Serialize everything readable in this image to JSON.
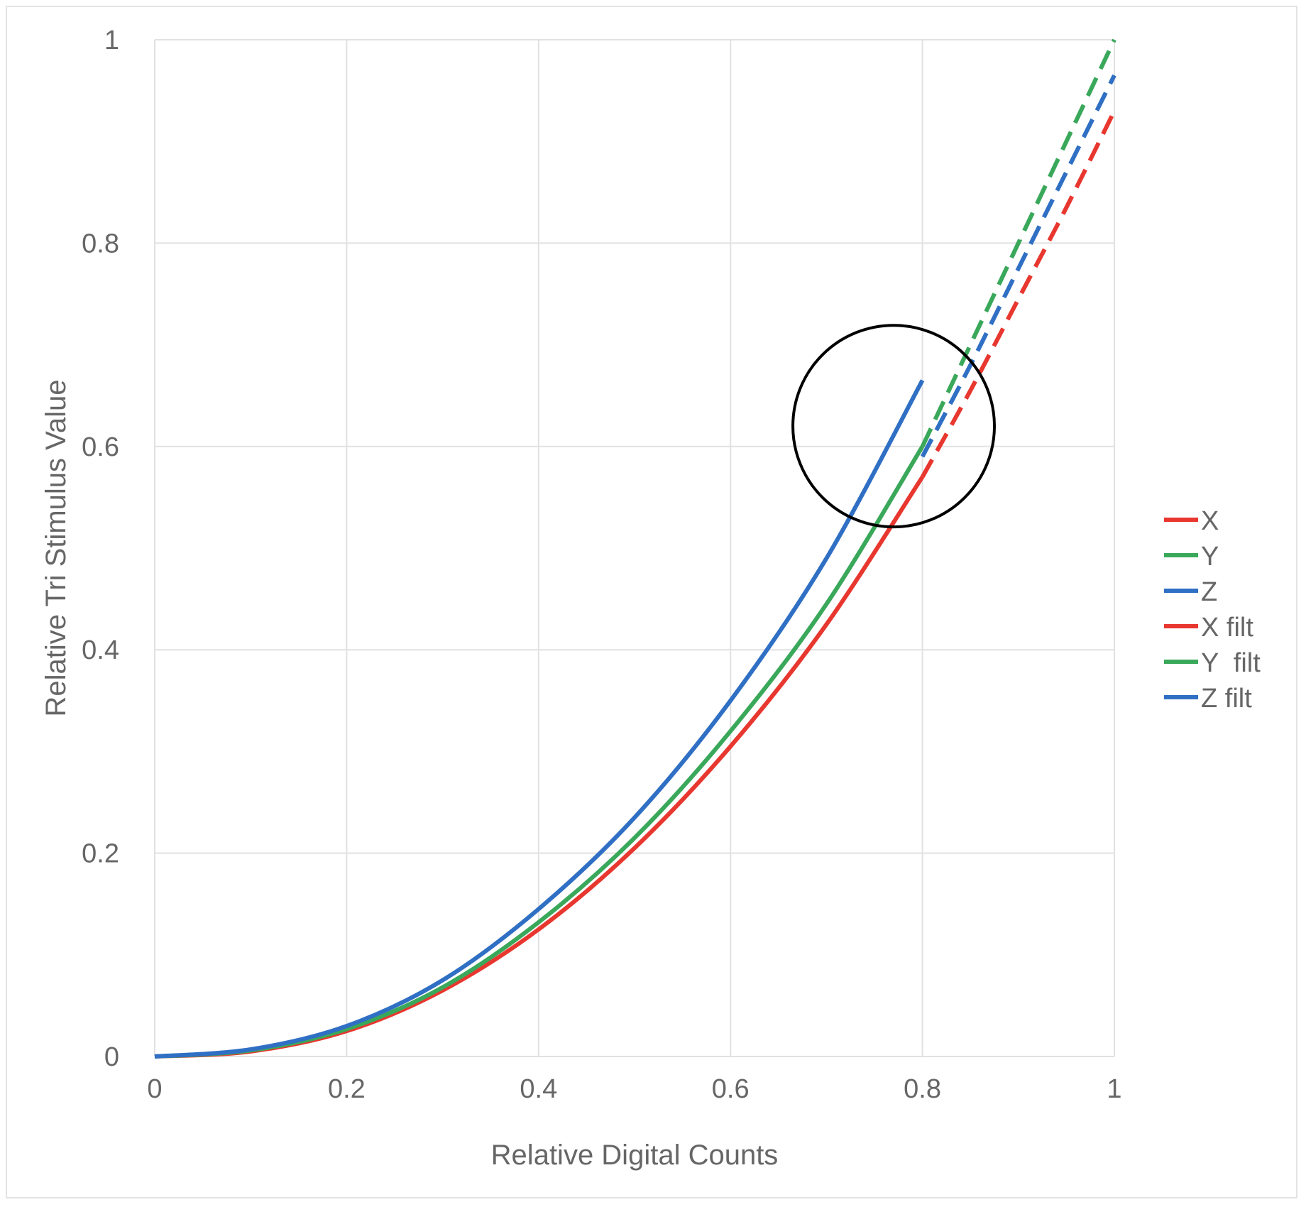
{
  "chart_data": {
    "type": "line",
    "title": "",
    "xlabel": "Relative Digital Counts",
    "ylabel": "Relative Tri Stimulus Value",
    "xlim": [
      0,
      1
    ],
    "ylim": [
      0,
      1
    ],
    "x_ticks": [
      {
        "value": 0,
        "label": "0"
      },
      {
        "value": 0.2,
        "label": "0.2"
      },
      {
        "value": 0.4,
        "label": "0.4"
      },
      {
        "value": 0.6,
        "label": "0.6"
      },
      {
        "value": 0.8,
        "label": "0.8"
      },
      {
        "value": 1,
        "label": "1"
      }
    ],
    "y_ticks": [
      {
        "value": 0,
        "label": "0"
      },
      {
        "value": 0.2,
        "label": "0.2"
      },
      {
        "value": 0.4,
        "label": "0.4"
      },
      {
        "value": 0.6,
        "label": "0.6"
      },
      {
        "value": 0.8,
        "label": "0.8"
      },
      {
        "value": 1,
        "label": "1"
      }
    ],
    "grid": true,
    "legend_position": "right",
    "series": [
      {
        "name": "X",
        "color": "#e8372f",
        "dash": "solid",
        "x": [
          0,
          0.1,
          0.2,
          0.3,
          0.4,
          0.5,
          0.6,
          0.7,
          0.8
        ],
        "y": [
          0,
          0.005,
          0.025,
          0.065,
          0.125,
          0.205,
          0.305,
          0.425,
          0.57
        ]
      },
      {
        "name": "Y",
        "color": "#3aa85a",
        "dash": "solid",
        "x": [
          0,
          0.1,
          0.2,
          0.3,
          0.4,
          0.5,
          0.6,
          0.7,
          0.8
        ],
        "y": [
          0,
          0.006,
          0.027,
          0.068,
          0.132,
          0.215,
          0.32,
          0.445,
          0.6
        ]
      },
      {
        "name": "Z",
        "color": "#2f6fc4",
        "dash": "solid",
        "x": [
          0,
          0.1,
          0.2,
          0.3,
          0.4,
          0.5,
          0.6,
          0.7,
          0.8
        ],
        "y": [
          0,
          0.007,
          0.03,
          0.075,
          0.145,
          0.235,
          0.35,
          0.49,
          0.665
        ]
      },
      {
        "name": "X filt",
        "color": "#e8372f",
        "dash": "dashed",
        "x": [
          0.8,
          0.85,
          0.9,
          0.95,
          1.0
        ],
        "y": [
          0.57,
          0.655,
          0.745,
          0.835,
          0.93
        ]
      },
      {
        "name": "Y  filt",
        "color": "#3aa85a",
        "dash": "dashed",
        "x": [
          0.8,
          0.85,
          0.9,
          0.95,
          1.0
        ],
        "y": [
          0.6,
          0.7,
          0.8,
          0.9,
          1.0
        ]
      },
      {
        "name": "Z filt",
        "color": "#2f6fc4",
        "dash": "dashed",
        "x": [
          0.8,
          0.85,
          0.9,
          0.95,
          1.0
        ],
        "y": [
          0.59,
          0.68,
          0.775,
          0.87,
          0.965
        ]
      }
    ],
    "annotations": [
      {
        "type": "circle",
        "x": 0.77,
        "y": 0.62,
        "r_x": 0.105,
        "color": "#000000"
      }
    ]
  },
  "colors": {
    "grid": "#e1e1e1",
    "axis_text": "#666666",
    "label_text": "#666666"
  }
}
